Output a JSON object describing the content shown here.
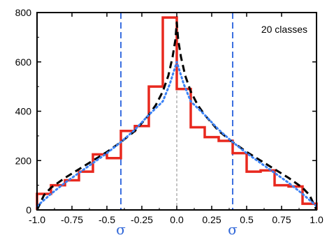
{
  "chart_data": {
    "type": "line",
    "title": "",
    "xlabel": "",
    "ylabel": "",
    "xlim": [
      -1.0,
      1.0
    ],
    "ylim": [
      0,
      800
    ],
    "grid": false,
    "legend": "none",
    "annotation": "20 classes",
    "x_ticks": [
      -1.0,
      -0.75,
      -0.5,
      -0.25,
      0.0,
      0.25,
      0.5,
      0.75,
      1.0
    ],
    "x_tick_labels": [
      "-1.0",
      "-0.75",
      "-0.5",
      "-0.25",
      "0.0",
      "0.25",
      "0.5",
      "0.75",
      "1.0"
    ],
    "y_ticks": [
      0,
      200,
      400,
      600,
      800
    ],
    "y_tick_labels": [
      "0",
      "200",
      "400",
      "600",
      "800"
    ],
    "sigma_markers": {
      "x": [
        -0.4,
        0.4
      ],
      "label": "σ",
      "color": "#3b6fe0"
    },
    "center_line": {
      "x": 0.0,
      "color": "#888888"
    },
    "series": [
      {
        "kind": "step",
        "color": "#e8281e",
        "bin_edges": [
          -1.0,
          -0.9,
          -0.8,
          -0.7,
          -0.6,
          -0.5,
          -0.4,
          -0.3,
          -0.2,
          -0.1,
          0.0,
          0.1,
          0.2,
          0.3,
          0.4,
          0.5,
          0.6,
          0.7,
          0.8,
          0.9,
          1.0
        ],
        "values": [
          65,
          100,
          120,
          155,
          225,
          210,
          320,
          340,
          500,
          780,
          490,
          335,
          295,
          280,
          230,
          155,
          160,
          100,
          95,
          25
        ]
      },
      {
        "kind": "dashed",
        "color": "#000000",
        "x": [
          -1.0,
          -0.95,
          -0.9,
          -0.8,
          -0.7,
          -0.6,
          -0.5,
          -0.4,
          -0.3,
          -0.2,
          -0.15,
          -0.1,
          -0.06,
          -0.03,
          -0.01,
          0.0,
          0.01,
          0.03,
          0.06,
          0.1,
          0.15,
          0.2,
          0.3,
          0.4,
          0.5,
          0.6,
          0.7,
          0.8,
          0.9,
          0.95,
          1.0
        ],
        "y": [
          0,
          60,
          90,
          130,
          165,
          200,
          235,
          275,
          320,
          385,
          425,
          480,
          545,
          620,
          690,
          760,
          690,
          620,
          545,
          480,
          425,
          385,
          320,
          275,
          235,
          200,
          165,
          130,
          90,
          60,
          0
        ]
      },
      {
        "kind": "dotted",
        "color": "#3b82f6",
        "x": [
          -1.0,
          -0.9,
          -0.8,
          -0.7,
          -0.6,
          -0.5,
          -0.4,
          -0.3,
          -0.2,
          -0.1,
          -0.05,
          0.0,
          0.05,
          0.1,
          0.2,
          0.3,
          0.4,
          0.5,
          0.6,
          0.7,
          0.8,
          0.9,
          1.0
        ],
        "y": [
          15,
          65,
          110,
          150,
          190,
          230,
          275,
          325,
          385,
          440,
          510,
          600,
          510,
          440,
          385,
          325,
          275,
          230,
          190,
          150,
          110,
          65,
          15
        ]
      }
    ]
  }
}
